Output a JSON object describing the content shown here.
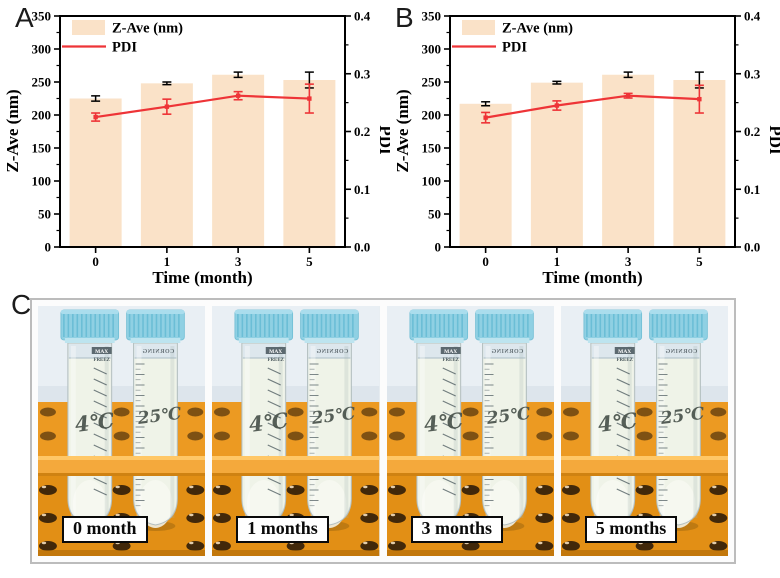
{
  "figure": {
    "panel_a_label": "A",
    "panel_b_label": "B",
    "panel_c_label": "C"
  },
  "colors": {
    "bar_fill": "#fae2c8",
    "pdi_line": "#ee3437",
    "axis": "#000000",
    "rack_orange": "#ec9a22",
    "cap_blue": "#8fd0e3"
  },
  "chart_data": [
    {
      "panel": "A",
      "type": "bar",
      "categories": [
        "0",
        "1",
        "3",
        "5"
      ],
      "xlabel": "Time (month)",
      "ylabel_left": "Z-Ave (nm)",
      "ylabel_right": "PDI",
      "ylim_left": [
        0,
        350
      ],
      "yticks_left": [
        0,
        50,
        100,
        150,
        200,
        250,
        300,
        350
      ],
      "ylim_right": [
        0,
        0.4
      ],
      "yticks_right": [
        0.0,
        0.1,
        0.2,
        0.3,
        0.4
      ],
      "legend": [
        "Z-Ave (nm)",
        "PDI"
      ],
      "series": [
        {
          "name": "Z-Ave (nm)",
          "type": "bar",
          "axis": "left",
          "values": [
            225,
            248,
            261,
            253
          ],
          "errors": [
            4,
            2,
            4,
            12
          ]
        },
        {
          "name": "PDI",
          "type": "line",
          "axis": "right",
          "values": [
            0.225,
            0.243,
            0.262,
            0.257
          ],
          "errors": [
            0.007,
            0.013,
            0.007,
            0.025
          ]
        }
      ]
    },
    {
      "panel": "B",
      "type": "bar",
      "categories": [
        "0",
        "1",
        "3",
        "5"
      ],
      "xlabel": "Time (month)",
      "ylabel_left": "Z-Ave (nm)",
      "ylabel_right": "PDI",
      "ylim_left": [
        0,
        350
      ],
      "yticks_left": [
        0,
        50,
        100,
        150,
        200,
        250,
        300,
        350
      ],
      "ylim_right": [
        0,
        0.4
      ],
      "yticks_right": [
        0.0,
        0.1,
        0.2,
        0.3,
        0.4
      ],
      "legend": [
        "Z-Ave (nm)",
        "PDI"
      ],
      "series": [
        {
          "name": "Z-Ave (nm)",
          "type": "bar",
          "axis": "left",
          "values": [
            217,
            249,
            261,
            253
          ],
          "errors": [
            3,
            2,
            4,
            12
          ]
        },
        {
          "name": "PDI",
          "type": "line",
          "axis": "right",
          "values": [
            0.224,
            0.245,
            0.262,
            0.256
          ],
          "errors": [
            0.009,
            0.008,
            0.004,
            0.024
          ]
        }
      ]
    }
  ],
  "photos": {
    "items": [
      {
        "label": "0 month",
        "tube_left": "4℃",
        "tube_right": "25℃"
      },
      {
        "label": "1 months",
        "tube_left": "4℃",
        "tube_right": "25℃"
      },
      {
        "label": "3 months",
        "tube_left": "4℃",
        "tube_right": "25℃"
      },
      {
        "label": "5 months",
        "tube_left": "4℃",
        "tube_right": "25℃"
      }
    ],
    "tube_print": {
      "max": "MAX",
      "freez": "FREEZ",
      "brand": "CORNING"
    }
  }
}
